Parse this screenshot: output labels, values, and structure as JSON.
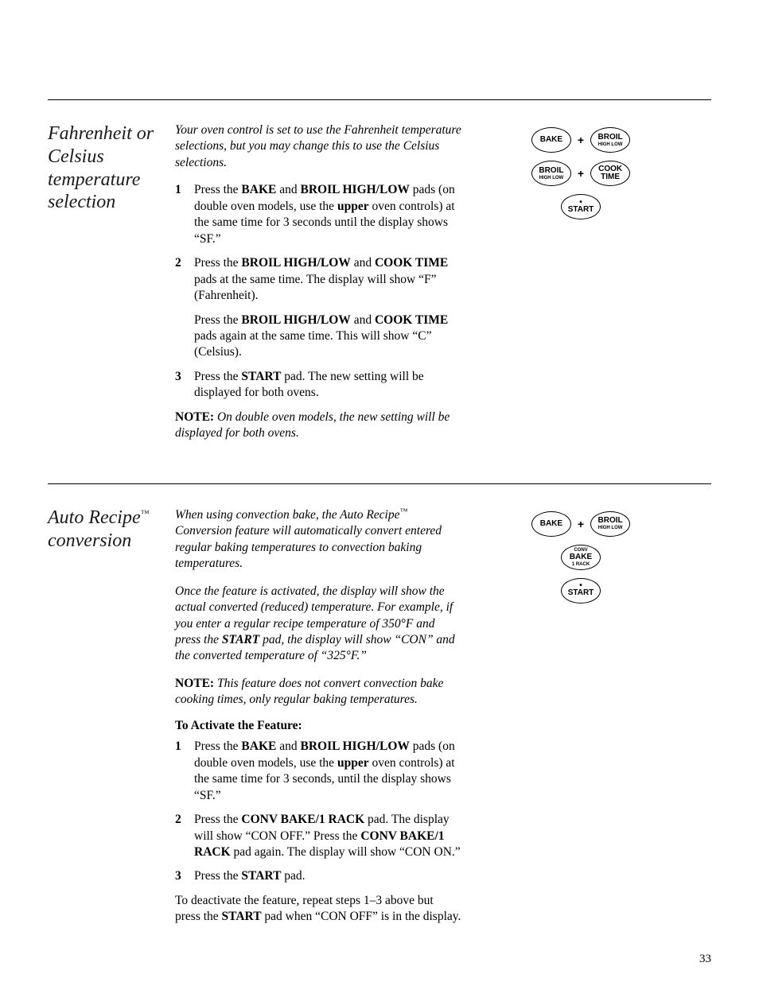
{
  "page_number": "33",
  "colors": {
    "text": "#000000",
    "bg": "#ffffff",
    "rule": "#000000"
  },
  "fonts": {
    "body_pt": 15.5,
    "heading_pt": 24
  },
  "section1": {
    "heading": "Fahrenheit or Celsius temperature selection",
    "intro": "Your oven control is set to use the Fahrenheit temperature selections, but you may change this to use the Celsius selections.",
    "steps": {
      "s1": {
        "pre": "Press the ",
        "b1": "BAKE",
        "mid1": " and ",
        "b2": "BROIL HIGH/LOW",
        "post1": " pads (on double oven models, use the ",
        "b3": "upper",
        "post2": " oven controls) at the same time for 3 seconds until the display shows “SF.”"
      },
      "s2": {
        "pre": "Press the ",
        "b1": "BROIL HIGH/LOW",
        "mid1": " and ",
        "b2": "COOK TIME",
        "post1": " pads at the same time. The display will show “F” (Fahrenheit).",
        "sub_pre": "Press the ",
        "sub_b1": "BROIL HIGH/LOW",
        "sub_mid": " and ",
        "sub_b2": "COOK TIME",
        "sub_post": " pads again at the same time. This will show “C” (Celsius)."
      },
      "s3": {
        "pre": "Press the ",
        "b1": "START",
        "post": " pad. The new setting will be displayed for both ovens."
      }
    },
    "note_label": "NOTE:",
    "note_body": " On double oven models, the new setting will be displayed for both ovens.",
    "buttons": {
      "r1a": "BAKE",
      "r1b_top": "BROIL",
      "r1b_sub": "HIGH\nLOW",
      "r2a_top": "BROIL",
      "r2a_sub": "HIGH\nLOW",
      "r2b_top": "COOK",
      "r2b_bot": "TIME",
      "r3": "START"
    }
  },
  "section2": {
    "heading_pre": "Auto Recipe",
    "heading_tm": "™",
    "heading_post": "conversion",
    "intro1_pre": "When using convection bake, the Auto Recipe",
    "intro1_tm": "™",
    "intro1_post": " Conversion feature will automatically convert entered regular baking temperatures to convection baking temperatures.",
    "intro2_pre": "Once the feature is activated, the display will show the actual converted (reduced) temperature. For example, if you enter a regular recipe temperature of 350°F and press the ",
    "intro2_b": "START",
    "intro2_post": " pad, the display will show “CON” and the converted temperature of “325°F.”",
    "note_label": "NOTE:",
    "note_body": " This feature does not convert convection bake cooking times, only regular baking temperatures.",
    "activate_head": "To Activate the Feature:",
    "steps": {
      "s1": {
        "pre": "Press the ",
        "b1": "BAKE",
        "mid1": " and ",
        "b2": "BROIL HIGH/LOW",
        "post1": " pads (on double oven models, use the ",
        "b3": "upper",
        "post2": " oven controls) at the same time for 3 seconds, until the display shows “SF.”"
      },
      "s2": {
        "pre": "Press the ",
        "b1": "CONV BAKE/1 RACK",
        "mid": " pad. The display will show “CON OFF.” Press the ",
        "b2": "CONV BAKE/1 RACK",
        "post": " pad again. The display will show “CON ON.”"
      },
      "s3": {
        "pre": "Press the ",
        "b1": "START",
        "post": " pad."
      }
    },
    "closing_pre": "To deactivate the feature, repeat steps 1–3 above but press the ",
    "closing_b": "START",
    "closing_post": " pad when “CON OFF” is in the display.",
    "buttons": {
      "r1a": "BAKE",
      "r1b_top": "BROIL",
      "r1b_sub": "HIGH\nLOW",
      "r2_top": "CONV",
      "r2_mid": "BAKE",
      "r2_sub": "1 RACK",
      "r3": "START"
    }
  }
}
